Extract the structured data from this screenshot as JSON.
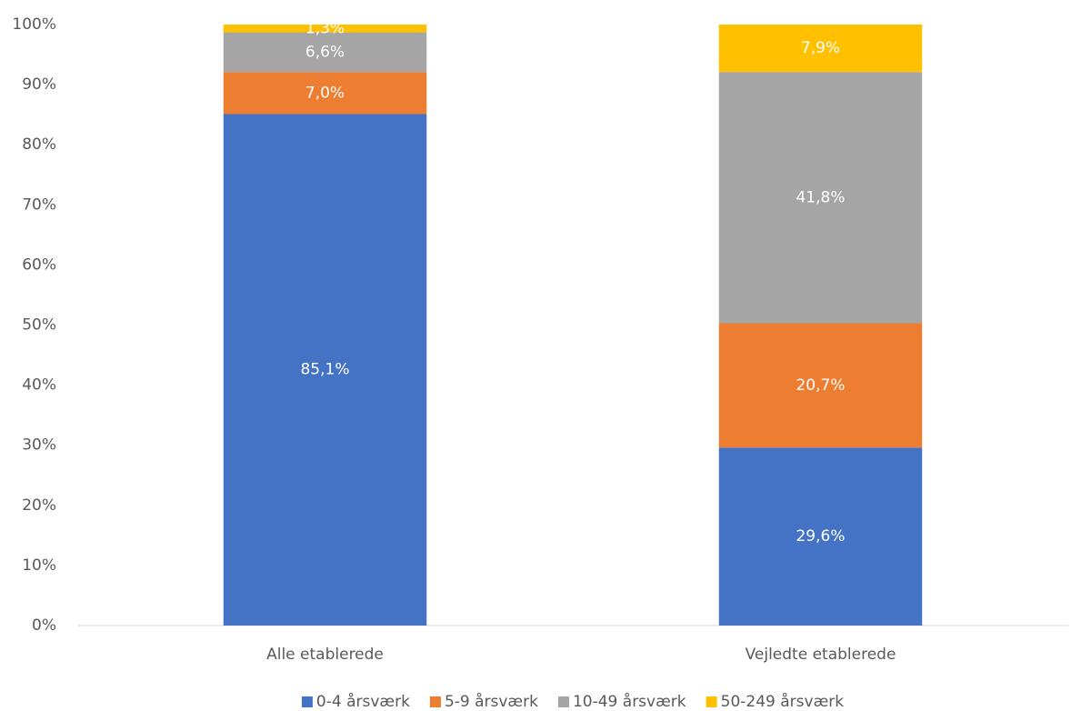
{
  "chart_data": {
    "type": "stacked_bar",
    "categories": [
      "Alle etablerede",
      "Vejledte etablerede"
    ],
    "series": [
      {
        "name": "0-4 årsværk",
        "color": "#4472c4",
        "values": [
          85.1,
          29.6
        ],
        "value_labels": [
          "85,1%",
          "29,6%"
        ]
      },
      {
        "name": "5-9 årsværk",
        "color": "#ed7d31",
        "values": [
          7.0,
          20.7
        ],
        "value_labels": [
          "7,0%",
          "20,7%"
        ]
      },
      {
        "name": "10-49 årsværk",
        "color": "#a5a5a5",
        "values": [
          6.6,
          41.8
        ],
        "value_labels": [
          "6,6%",
          "41,8%"
        ]
      },
      {
        "name": "50-249 årsværk",
        "color": "#ffc000",
        "values": [
          1.3,
          7.9
        ],
        "value_labels": [
          "1,3%",
          "7,9%"
        ]
      }
    ],
    "ylim": [
      0,
      100
    ],
    "yticks": [
      {
        "value": 0,
        "label": "0%"
      },
      {
        "value": 10,
        "label": "10%"
      },
      {
        "value": 20,
        "label": "20%"
      },
      {
        "value": 30,
        "label": "30%"
      },
      {
        "value": 40,
        "label": "40%"
      },
      {
        "value": 50,
        "label": "50%"
      },
      {
        "value": 60,
        "label": "60%"
      },
      {
        "value": 70,
        "label": "70%"
      },
      {
        "value": 80,
        "label": "80%"
      },
      {
        "value": 90,
        "label": "90%"
      },
      {
        "value": 100,
        "label": "100%"
      }
    ],
    "grid": false,
    "legend": "bottom"
  }
}
